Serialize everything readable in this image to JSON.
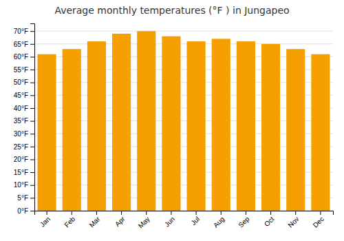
{
  "chart_data": {
    "type": "bar",
    "title": "Average monthly temperatures (°F ) in Jungapeo",
    "categories": [
      "Jan",
      "Feb",
      "Mar",
      "Apr",
      "May",
      "Jun",
      "Jul",
      "Aug",
      "Sep",
      "Oct",
      "Nov",
      "Dec"
    ],
    "values": [
      61,
      63,
      66,
      69,
      70,
      68,
      66,
      67,
      66,
      65,
      63,
      61
    ],
    "color": "#F5A000",
    "ylim": [
      0,
      73
    ],
    "yticks": [
      {
        "value": 0,
        "label": "0°F"
      },
      {
        "value": 5,
        "label": "5°F"
      },
      {
        "value": 10,
        "label": "10°F"
      },
      {
        "value": 15,
        "label": "15°F"
      },
      {
        "value": 20,
        "label": "20°F"
      },
      {
        "value": 25,
        "label": "25°F"
      },
      {
        "value": 30,
        "label": "30°F"
      },
      {
        "value": 35,
        "label": "35°F"
      },
      {
        "value": 40,
        "label": "40°F"
      },
      {
        "value": 45,
        "label": "45°F"
      },
      {
        "value": 50,
        "label": "50°F"
      },
      {
        "value": 55,
        "label": "55°F"
      },
      {
        "value": 60,
        "label": "60°F"
      },
      {
        "value": 65,
        "label": "65°F"
      },
      {
        "value": 70,
        "label": "70°F"
      }
    ],
    "grid": true
  }
}
